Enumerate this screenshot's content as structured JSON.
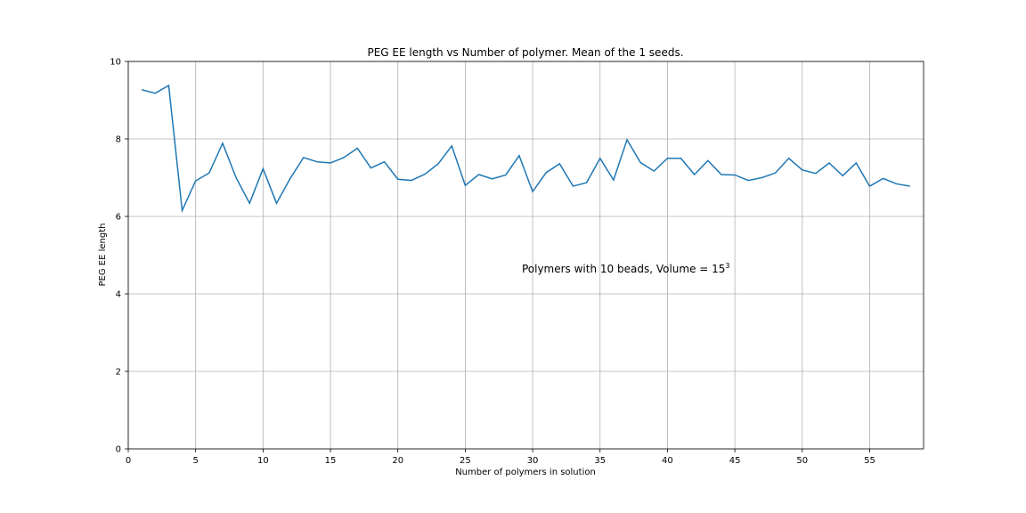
{
  "chart_data": {
    "type": "line",
    "title": "PEG EE length vs Number of polymer. Mean of the 1 seeds.",
    "xlabel": "Number of polymers in solution",
    "ylabel": "PEG EE length",
    "xlim": [
      0,
      59
    ],
    "ylim": [
      0,
      10
    ],
    "xticks": [
      0,
      5,
      10,
      15,
      20,
      25,
      30,
      35,
      40,
      45,
      50,
      55
    ],
    "yticks": [
      0,
      2,
      4,
      6,
      8,
      10
    ],
    "grid": true,
    "annotation": {
      "text": "Polymers with 10 beads, Volume = 15",
      "superscript": "3",
      "x": 29.2,
      "y": 4.55
    },
    "series": [
      {
        "color": "#1f77b4",
        "x": [
          1,
          2,
          3,
          4,
          5,
          6,
          7,
          8,
          9,
          10,
          11,
          12,
          13,
          14,
          15,
          16,
          17,
          18,
          19,
          20,
          21,
          22,
          23,
          24,
          25,
          26,
          27,
          28,
          29,
          30,
          31,
          32,
          33,
          34,
          35,
          36,
          37,
          38,
          39,
          40,
          41,
          42,
          43,
          44,
          45,
          46,
          47,
          48,
          49,
          50,
          51,
          52,
          53,
          54,
          55,
          56,
          57,
          58
        ],
        "y": [
          9.27,
          9.18,
          9.38,
          6.15,
          6.92,
          7.12,
          7.89,
          7.0,
          6.34,
          7.23,
          6.34,
          6.97,
          7.52,
          7.41,
          7.38,
          7.52,
          7.76,
          7.25,
          7.41,
          6.96,
          6.93,
          7.09,
          7.36,
          7.82,
          6.8,
          7.08,
          6.97,
          7.07,
          7.57,
          6.64,
          7.13,
          7.36,
          6.78,
          6.87,
          7.5,
          6.94,
          7.98,
          7.39,
          7.17,
          7.5,
          7.5,
          7.08,
          7.44,
          7.08,
          7.07,
          6.93,
          7.0,
          7.12,
          7.5,
          7.2,
          7.11,
          7.38,
          7.05,
          7.38,
          6.78,
          6.98,
          6.84,
          6.78
        ]
      }
    ]
  }
}
